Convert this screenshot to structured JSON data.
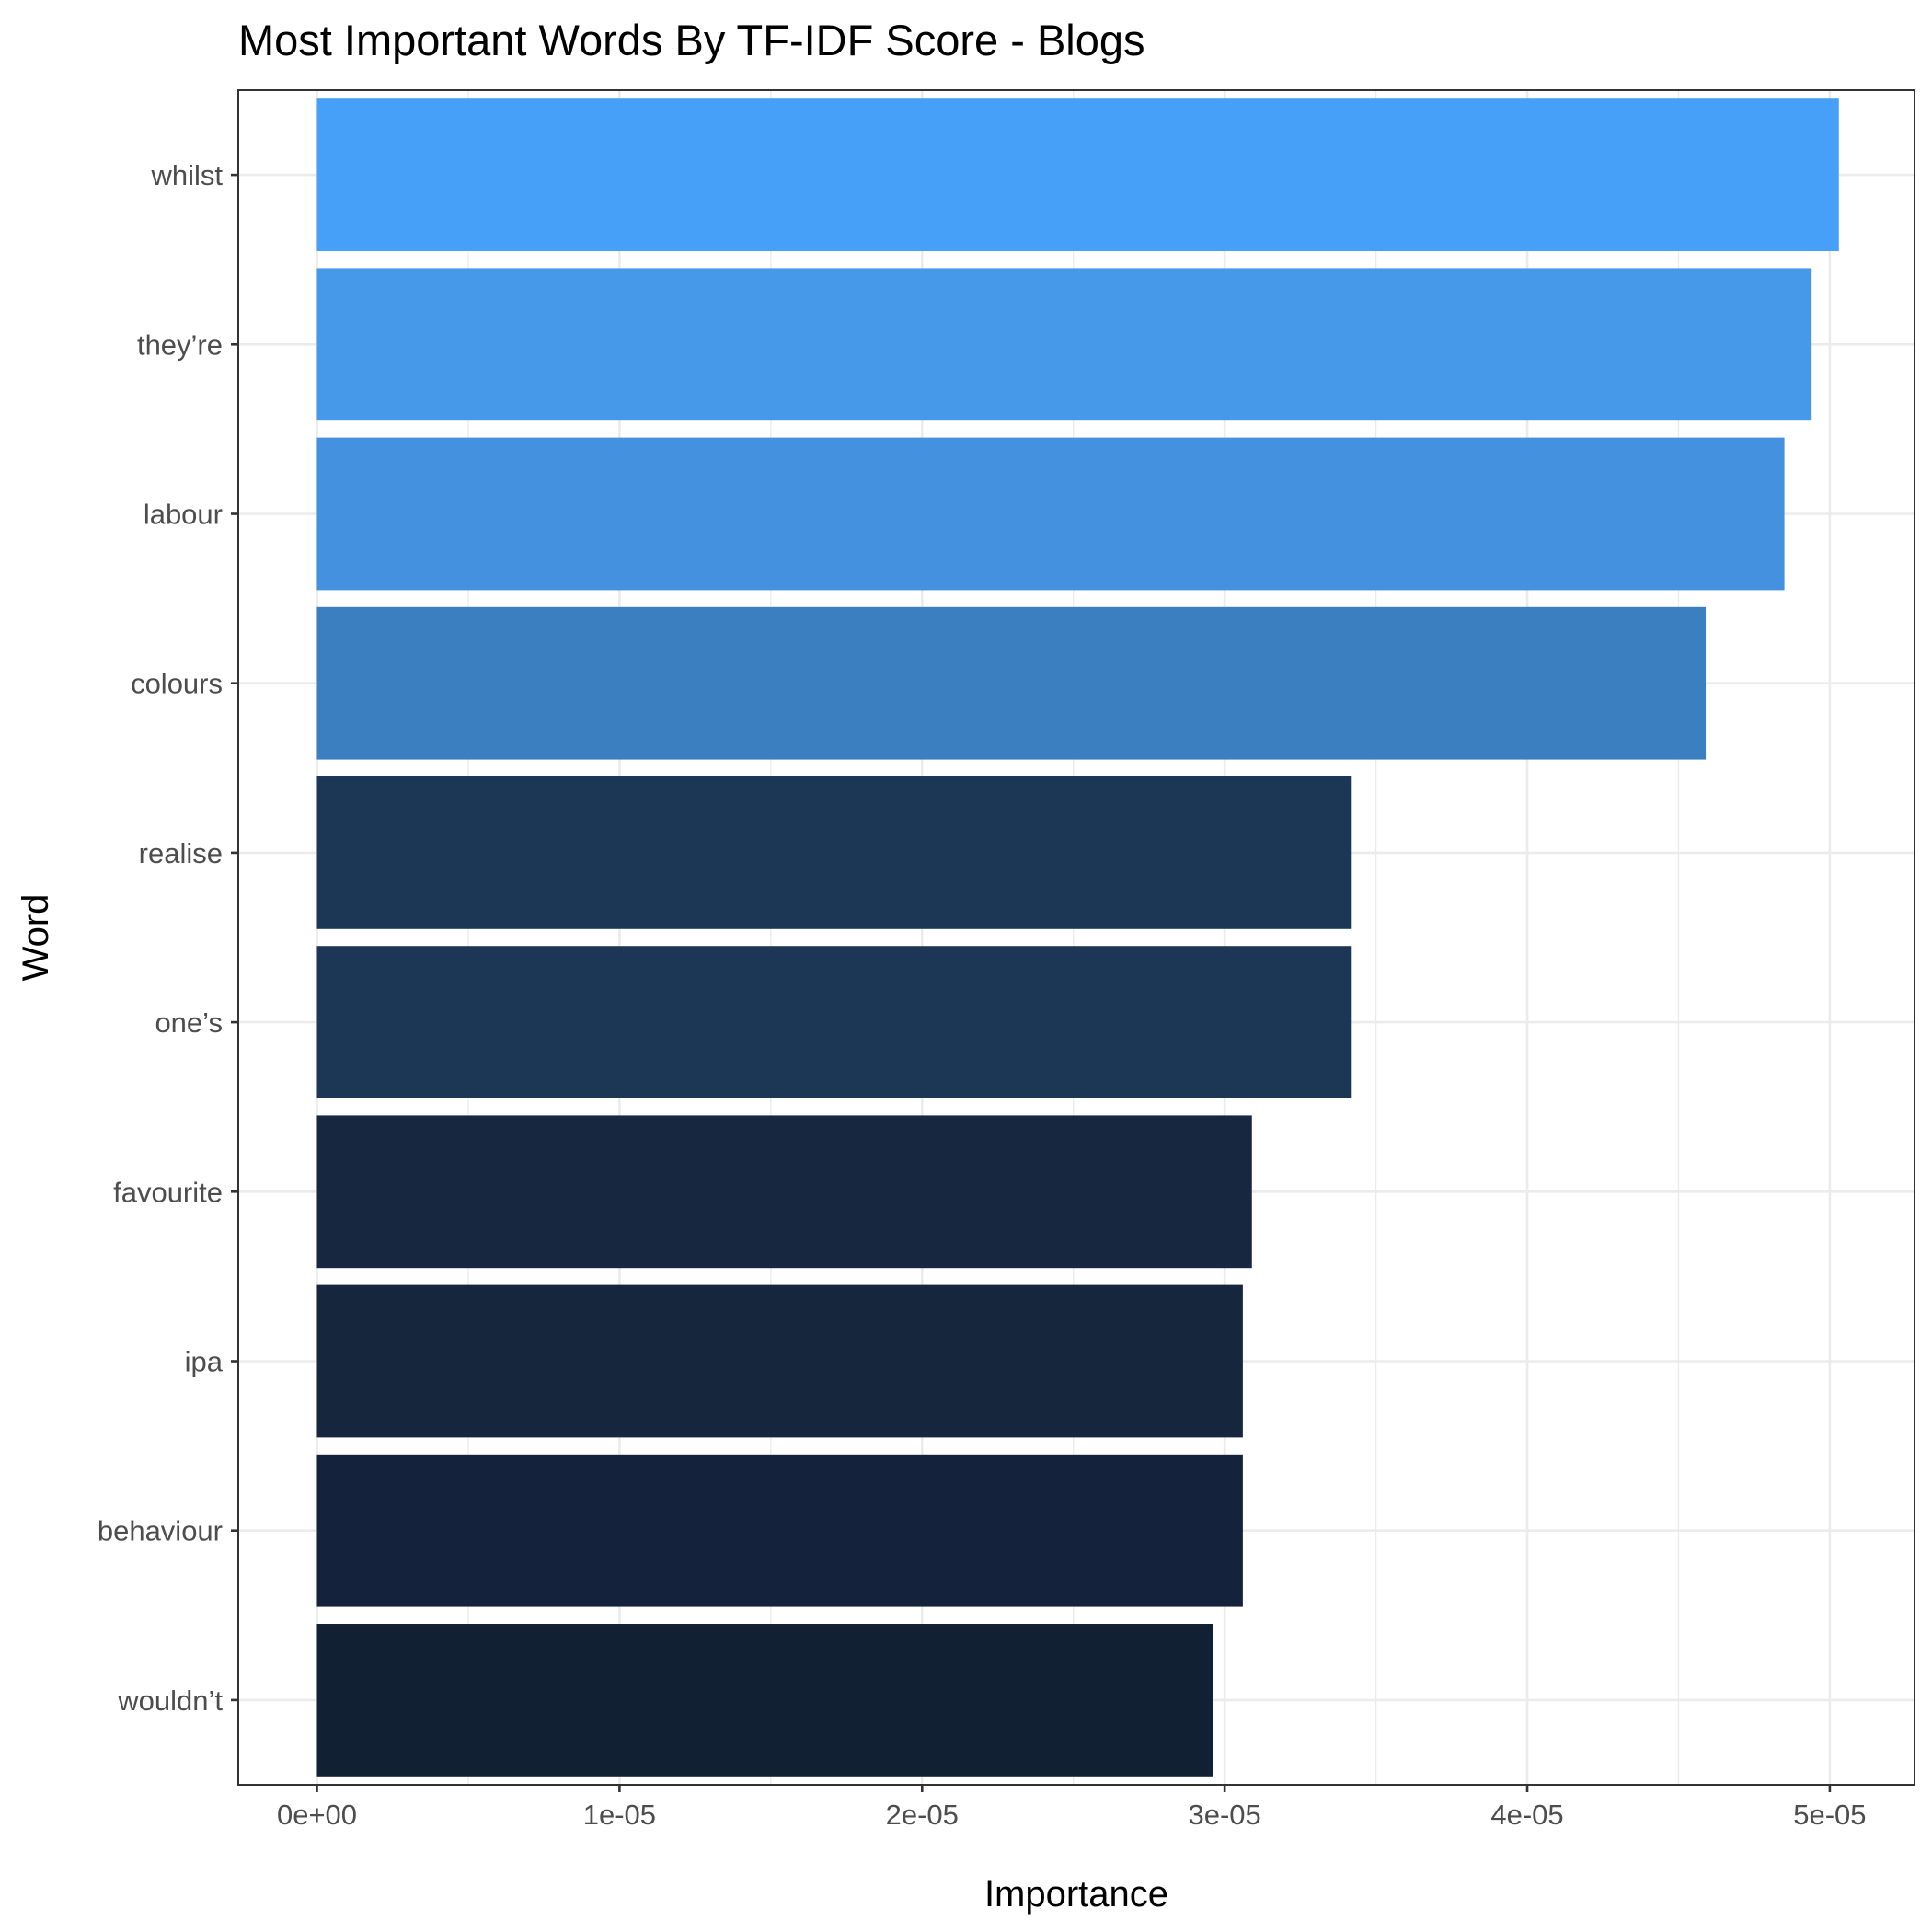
{
  "chart_data": {
    "type": "bar",
    "orientation": "horizontal",
    "title": "Most Important Words By TF-IDF Score - Blogs",
    "xlabel": "Importance",
    "ylabel": "Word",
    "categories": [
      "whilst",
      "they’re",
      "labour",
      "colours",
      "realise",
      "one’s",
      "favourite",
      "ipa",
      "behaviour",
      "wouldn’t"
    ],
    "values": [
      5.03e-05,
      4.94e-05,
      4.85e-05,
      4.59e-05,
      3.42e-05,
      3.42e-05,
      3.09e-05,
      3.06e-05,
      3.06e-05,
      2.96e-05
    ],
    "colors": [
      "#47a0f7",
      "#4699e8",
      "#4491e0",
      "#3c7fc1",
      "#1c3656",
      "#1c3656",
      "#16273f",
      "#15263d",
      "#14233b",
      "#122033"
    ],
    "xlim": [
      -2.6e-06,
      5.28e-05
    ],
    "xticks": [
      0,
      1e-05,
      2e-05,
      3e-05,
      4e-05,
      5e-05
    ],
    "xtick_labels": [
      "0e+00",
      "1e-05",
      "2e-05",
      "3e-05",
      "4e-05",
      "5e-05"
    ],
    "grid": true,
    "legend": "none"
  }
}
